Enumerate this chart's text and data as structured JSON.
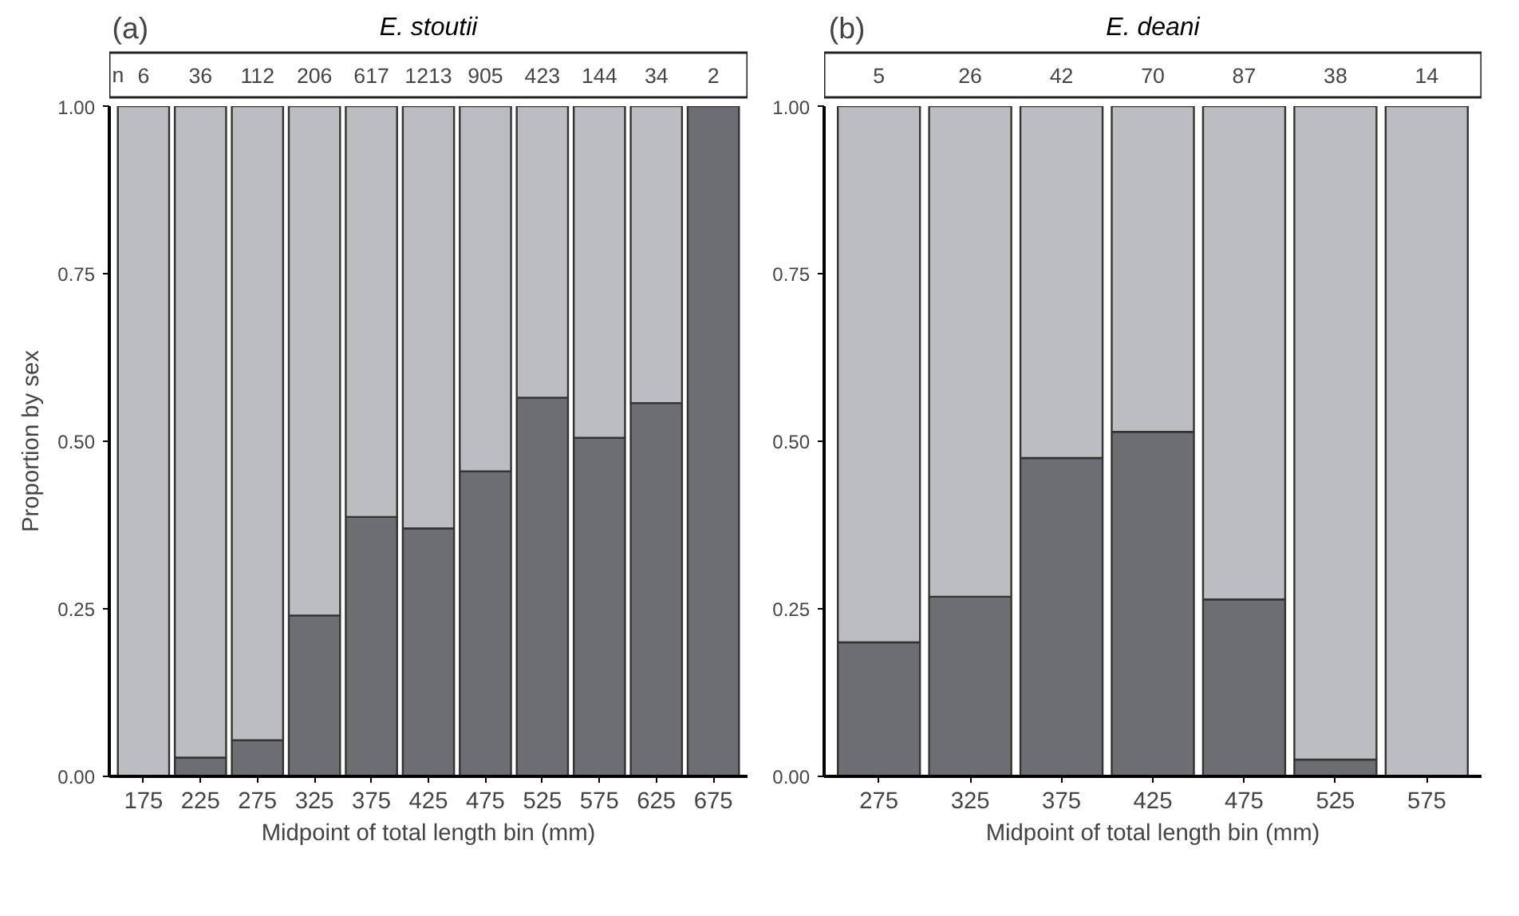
{
  "chart_data": [
    {
      "type": "bar",
      "stacked": true,
      "title": "E. stoutii",
      "xlabel": "Midpoint of total length bin (mm)",
      "ylabel": "Proportion by sex",
      "categories": [
        "175",
        "225",
        "275",
        "325",
        "375",
        "425",
        "475",
        "525",
        "575",
        "625",
        "675"
      ],
      "series": [
        {
          "color": "#6d6e72",
          "values": [
            0,
            0.028,
            0.054,
            0.24,
            0.387,
            0.37,
            0.455,
            0.565,
            0.505,
            0.557,
            1
          ]
        },
        {
          "color": "#bcbdc1",
          "values": [
            1,
            0.972,
            0.946,
            0.76,
            0.613,
            0.63,
            0.545,
            0.435,
            0.495,
            0.443,
            0
          ]
        }
      ],
      "ylim": [
        0,
        1
      ],
      "yticks": [
        {
          "value": 0,
          "label": "0.00"
        },
        {
          "value": 0.25,
          "label": "0.25"
        },
        {
          "value": 0.5,
          "label": "0.50"
        },
        {
          "value": 0.75,
          "label": "0.75"
        },
        {
          "value": 1,
          "label": "1.00"
        }
      ],
      "annotations": [
        "(a)",
        "n",
        "6",
        "36",
        "112",
        "206",
        "617",
        "1213",
        "905",
        "423",
        "144",
        "34",
        "2"
      ]
    },
    {
      "type": "bar",
      "stacked": true,
      "title": "E. deani",
      "xlabel": "Midpoint of total length bin (mm)",
      "categories": [
        "275",
        "325",
        "375",
        "425",
        "475",
        "525",
        "575"
      ],
      "series": [
        {
          "color": "#6d6e72",
          "values": [
            0.2,
            0.268,
            0.475,
            0.514,
            0.264,
            0.025,
            0
          ]
        },
        {
          "color": "#bcbdc1",
          "values": [
            0.8,
            0.732,
            0.525,
            0.486,
            0.736,
            0.975,
            1
          ]
        }
      ],
      "ylim": [
        0,
        1
      ],
      "yticks": [
        {
          "value": 0,
          "label": "0.00"
        },
        {
          "value": 0.25,
          "label": "0.25"
        },
        {
          "value": 0.5,
          "label": "0.50"
        },
        {
          "value": 0.75,
          "label": "0.75"
        },
        {
          "value": 1,
          "label": "1.00"
        }
      ],
      "annotations": [
        "(b)",
        "5",
        "26",
        "42",
        "70",
        "87",
        "38",
        "14"
      ]
    }
  ]
}
